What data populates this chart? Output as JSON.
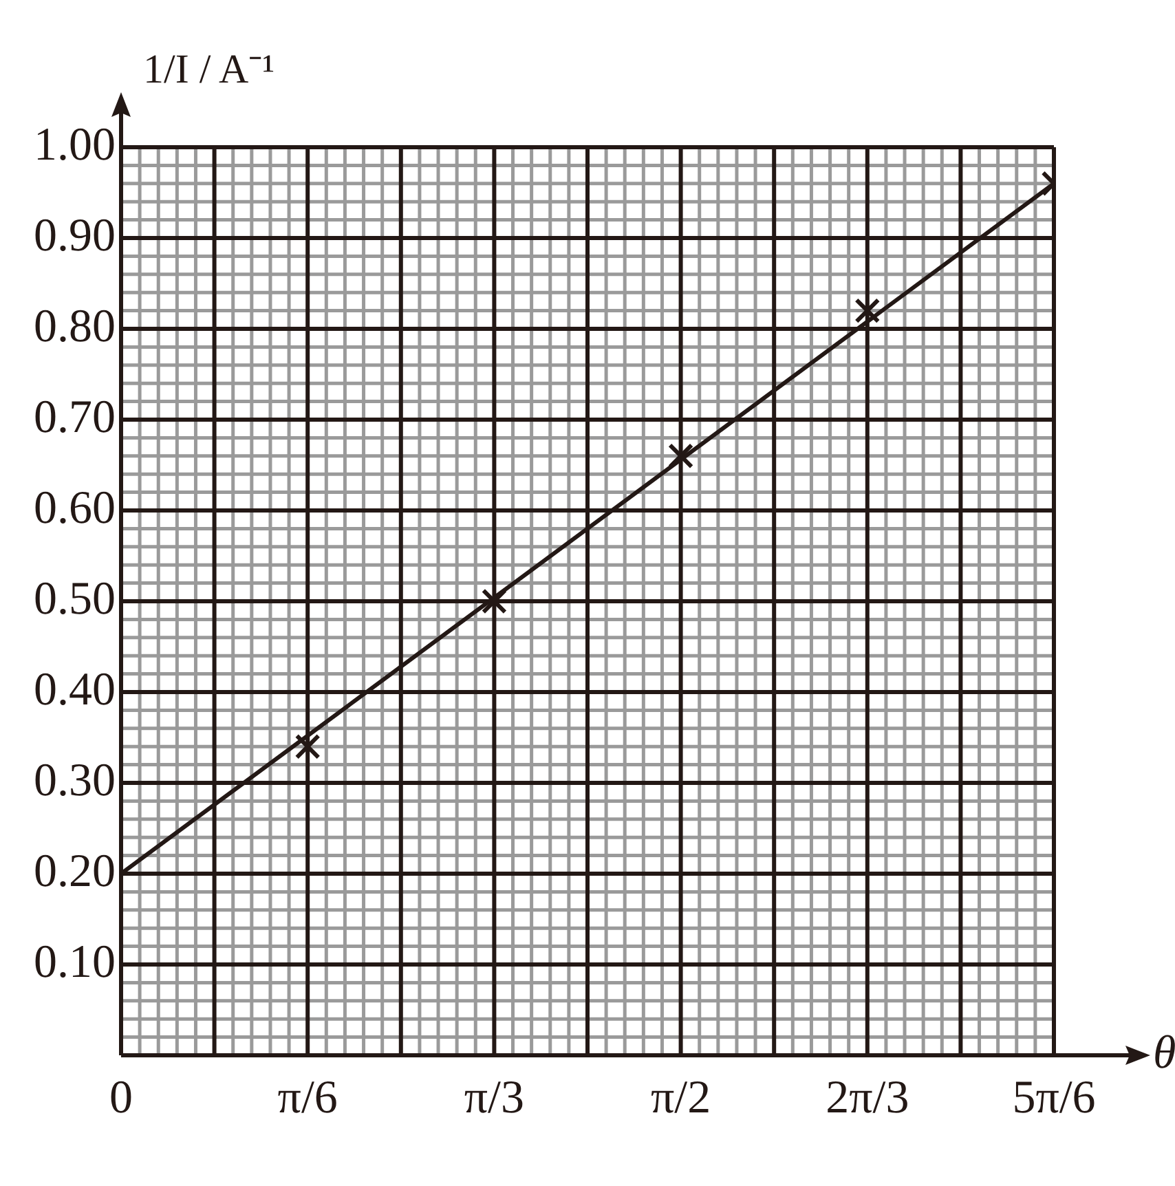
{
  "chart_data": {
    "type": "scatter",
    "xlabel": "θ",
    "ylabel": "1/I / A⁻¹",
    "series": [
      {
        "color": "#231815",
        "marker": "cross",
        "x": [
          0.5236,
          1.0472,
          1.5708,
          2.0944,
          2.618
        ],
        "values": [
          0.34,
          0.5,
          0.66,
          0.82,
          0.96
        ]
      },
      {
        "type": "line",
        "color": "#231815",
        "marker": "none",
        "line_style": "solid",
        "x": [
          0,
          2.618
        ],
        "values": [
          0.2,
          0.96
        ]
      }
    ],
    "xlim": [
      0,
      2.618
    ],
    "xticks": [
      {
        "value": 0,
        "label": "0"
      },
      {
        "value": 0.2618,
        "label": null
      },
      {
        "value": 0.5236,
        "label": "π/6"
      },
      {
        "value": 0.7854,
        "label": null
      },
      {
        "value": 1.0472,
        "label": "π/3"
      },
      {
        "value": 1.309,
        "label": null
      },
      {
        "value": 1.5708,
        "label": "π/2"
      },
      {
        "value": 1.8326,
        "label": null
      },
      {
        "value": 2.0944,
        "label": "2π/3"
      },
      {
        "value": 2.3562,
        "label": null
      },
      {
        "value": 2.618,
        "label": "5π/6"
      }
    ],
    "ylim": [
      0,
      1.0
    ],
    "yticks": [
      {
        "value": 0.1,
        "label": "0.10"
      },
      {
        "value": 0.2,
        "label": "0.20"
      },
      {
        "value": 0.3,
        "label": "0.30"
      },
      {
        "value": 0.4,
        "label": "0.40"
      },
      {
        "value": 0.5,
        "label": "0.50"
      },
      {
        "value": 0.6,
        "label": "0.60"
      },
      {
        "value": 0.7,
        "label": "0.70"
      },
      {
        "value": 0.8,
        "label": "0.80"
      },
      {
        "value": 0.9,
        "label": "0.90"
      },
      {
        "value": 1.0,
        "label": "1.00"
      }
    ],
    "grid": true,
    "legend": false
  }
}
